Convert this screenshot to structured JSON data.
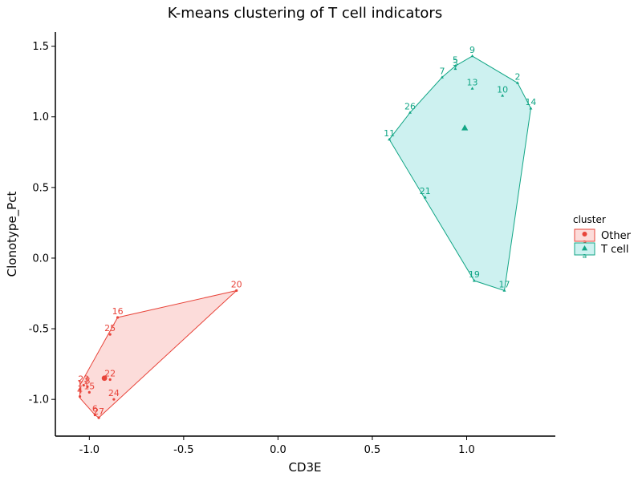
{
  "chart_data": {
    "type": "scatter",
    "title": "K-means clustering of T cell indicators",
    "xlabel": "CD3E",
    "ylabel": "Clonotype_Pct",
    "xlim": [
      -1.18,
      1.47
    ],
    "ylim": [
      -1.26,
      1.6
    ],
    "xticks": [
      -1.0,
      -0.5,
      0.0,
      0.5,
      1.0
    ],
    "xtick_labels": [
      "-1.0",
      "-0.5",
      "0.0",
      "0.5",
      "1.0"
    ],
    "yticks": [
      -1.0,
      -0.5,
      0.0,
      0.5,
      1.0,
      1.5
    ],
    "ytick_labels": [
      "-1.0",
      "-0.5",
      "0.0",
      "0.5",
      "1.0",
      "1.5"
    ],
    "legend": {
      "title": "cluster",
      "position": "right",
      "entries": [
        {
          "label": "Other",
          "glyph": "a"
        },
        {
          "label": "T cell",
          "glyph": "a"
        }
      ]
    },
    "series": [
      {
        "name": "Other",
        "marker": "circle",
        "color": "#e8443a",
        "fill": "#fcdcda",
        "points": [
          {
            "label": "20",
            "x": -0.22,
            "y": -0.23
          },
          {
            "label": "16",
            "x": -0.85,
            "y": -0.42
          },
          {
            "label": "25",
            "x": -0.89,
            "y": -0.54
          },
          {
            "label": "22",
            "x": -0.89,
            "y": -0.86
          },
          {
            "label": "24",
            "x": -0.87,
            "y": -1.0
          },
          {
            "label": "27",
            "x": -0.95,
            "y": -1.13
          },
          {
            "label": "6",
            "x": -0.97,
            "y": -1.11
          },
          {
            "label": "23",
            "x": -1.03,
            "y": -0.9
          },
          {
            "label": "15",
            "x": -1.0,
            "y": -0.95
          },
          {
            "label": "8",
            "x": -1.01,
            "y": -0.91
          },
          {
            "label": "1",
            "x": -1.05,
            "y": -0.93
          },
          {
            "label": "4",
            "x": -1.05,
            "y": -0.98
          }
        ],
        "hull": [
          [
            -0.22,
            -0.23
          ],
          [
            -0.85,
            -0.42
          ],
          [
            -1.05,
            -0.9
          ],
          [
            -1.05,
            -0.99
          ],
          [
            -0.97,
            -1.11
          ],
          [
            -0.95,
            -1.13
          ]
        ],
        "centroid": {
          "x": -0.92,
          "y": -0.85
        }
      },
      {
        "name": "T cell",
        "marker": "triangle",
        "color": "#11a585",
        "fill": "#cdf1f0",
        "points": [
          {
            "label": "9",
            "x": 1.03,
            "y": 1.43
          },
          {
            "label": "5",
            "x": 0.94,
            "y": 1.36
          },
          {
            "label": "3",
            "x": 0.94,
            "y": 1.34
          },
          {
            "label": "7",
            "x": 0.87,
            "y": 1.28
          },
          {
            "label": "2",
            "x": 1.27,
            "y": 1.24
          },
          {
            "label": "13",
            "x": 1.03,
            "y": 1.2
          },
          {
            "label": "10",
            "x": 1.19,
            "y": 1.15
          },
          {
            "label": "14",
            "x": 1.34,
            "y": 1.06
          },
          {
            "label": "26",
            "x": 0.7,
            "y": 1.03
          },
          {
            "label": "11",
            "x": 0.59,
            "y": 0.84
          },
          {
            "label": "21",
            "x": 0.78,
            "y": 0.43
          },
          {
            "label": "19",
            "x": 1.04,
            "y": -0.16
          },
          {
            "label": "17",
            "x": 1.2,
            "y": -0.23
          }
        ],
        "hull": [
          [
            1.03,
            1.43
          ],
          [
            1.27,
            1.24
          ],
          [
            1.34,
            1.06
          ],
          [
            1.2,
            -0.23
          ],
          [
            1.04,
            -0.16
          ],
          [
            0.59,
            0.84
          ],
          [
            0.7,
            1.03
          ],
          [
            0.87,
            1.28
          ],
          [
            0.94,
            1.36
          ]
        ],
        "centroid": {
          "x": 0.99,
          "y": 0.92
        }
      }
    ]
  }
}
